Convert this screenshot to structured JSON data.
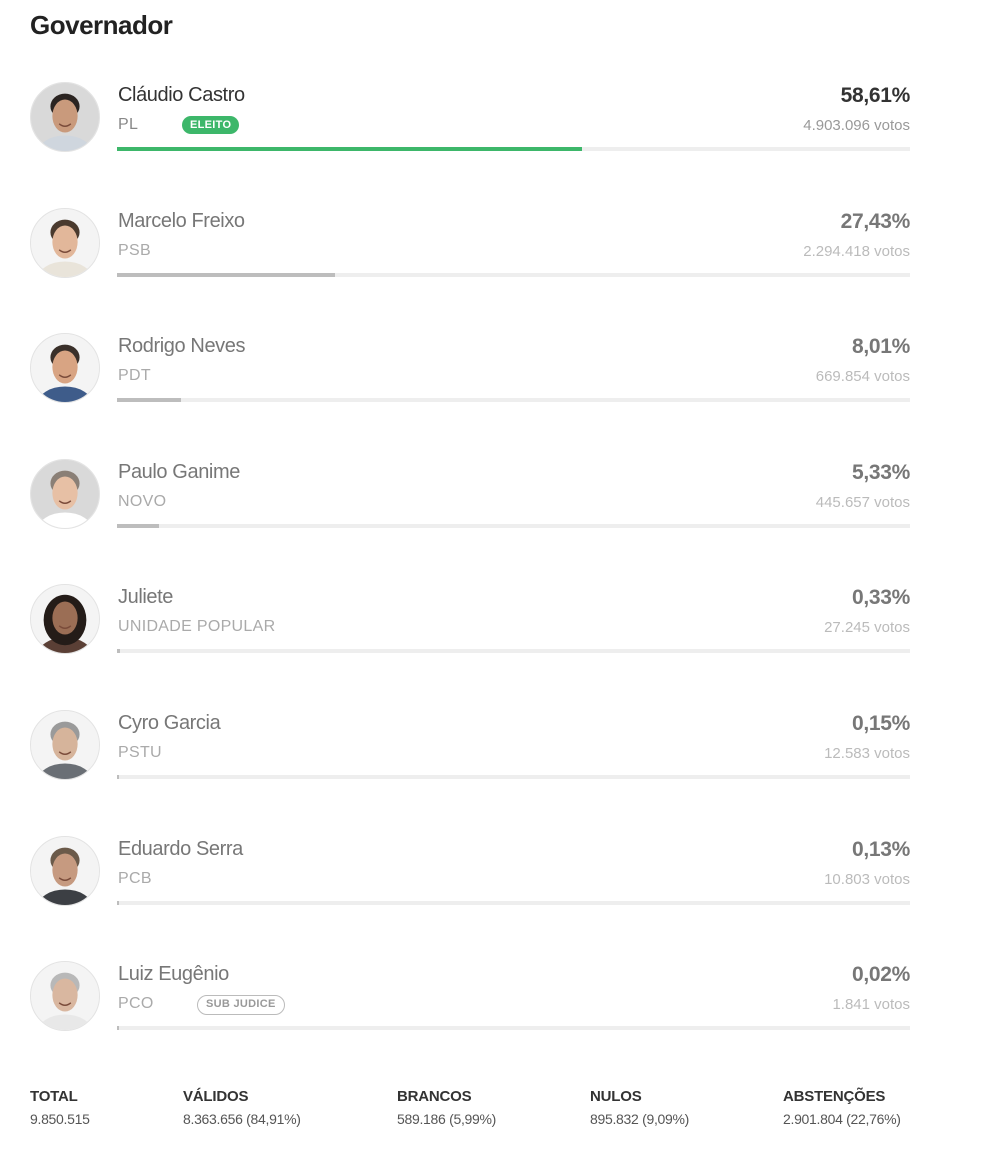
{
  "header": {
    "title": "Governador"
  },
  "colors": {
    "elected": "#3db76a",
    "bar": "#bdbdbd",
    "track": "#eeeeee"
  },
  "chart_data": {
    "type": "bar",
    "title": "Governador",
    "unit": "%",
    "xlim": [
      0,
      100
    ],
    "categories": [
      "Cláudio Castro",
      "Marcelo Freixo",
      "Rodrigo Neves",
      "Paulo Ganime",
      "Juliete",
      "Cyro Garcia",
      "Eduardo Serra",
      "Luiz Eugênio"
    ],
    "values": [
      58.61,
      27.43,
      8.01,
      5.33,
      0.33,
      0.15,
      0.13,
      0.02
    ],
    "candidates": [
      {
        "name": "Cláudio Castro",
        "party": "PL",
        "badge": "ELEITO",
        "badge_type": "elected",
        "percent": 58.61,
        "percent_label": "58,61%",
        "votes_label": "4.903.096 votos",
        "avatar_icon": "candidate-photo"
      },
      {
        "name": "Marcelo Freixo",
        "party": "PSB",
        "badge": "",
        "badge_type": "",
        "percent": 27.43,
        "percent_label": "27,43%",
        "votes_label": "2.294.418 votos",
        "avatar_icon": "candidate-photo"
      },
      {
        "name": "Rodrigo Neves",
        "party": "PDT",
        "badge": "",
        "badge_type": "",
        "percent": 8.01,
        "percent_label": "8,01%",
        "votes_label": "669.854 votos",
        "avatar_icon": "candidate-photo"
      },
      {
        "name": "Paulo Ganime",
        "party": "NOVO",
        "badge": "",
        "badge_type": "",
        "percent": 5.33,
        "percent_label": "5,33%",
        "votes_label": "445.657 votos",
        "avatar_icon": "candidate-photo"
      },
      {
        "name": "Juliete",
        "party": "UNIDADE POPULAR",
        "badge": "",
        "badge_type": "",
        "percent": 0.33,
        "percent_label": "0,33%",
        "votes_label": "27.245 votos",
        "avatar_icon": "candidate-photo"
      },
      {
        "name": "Cyro Garcia",
        "party": "PSTU",
        "badge": "",
        "badge_type": "",
        "percent": 0.15,
        "percent_label": "0,15%",
        "votes_label": "12.583 votos",
        "avatar_icon": "candidate-photo"
      },
      {
        "name": "Eduardo Serra",
        "party": "PCB",
        "badge": "",
        "badge_type": "",
        "percent": 0.13,
        "percent_label": "0,13%",
        "votes_label": "10.803 votos",
        "avatar_icon": "candidate-photo"
      },
      {
        "name": "Luiz Eugênio",
        "party": "PCO",
        "badge": "SUB JUDICE",
        "badge_type": "subjudice",
        "percent": 0.02,
        "percent_label": "0,02%",
        "votes_label": "1.841 votos",
        "avatar_icon": "candidate-photo"
      }
    ]
  },
  "summary": [
    {
      "label": "TOTAL",
      "value": "9.850.515"
    },
    {
      "label": "VÁLIDOS",
      "value": "8.363.656 (84,91%)"
    },
    {
      "label": "BRANCOS",
      "value": "589.186 (5,99%)"
    },
    {
      "label": "NULOS",
      "value": "895.832 (9,09%)"
    },
    {
      "label": "ABSTENÇÕES",
      "value": "2.901.804 (22,76%)"
    }
  ]
}
